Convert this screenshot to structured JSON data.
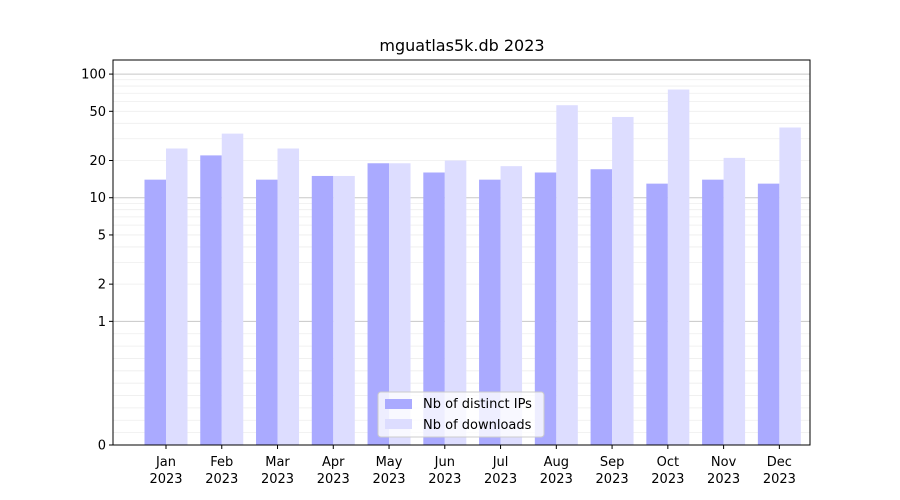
{
  "chart_data": {
    "type": "bar",
    "title": "mguatlas5k.db 2023",
    "xlabel": "",
    "ylabel": "",
    "categories": [
      [
        "Jan",
        "2023"
      ],
      [
        "Feb",
        "2023"
      ],
      [
        "Mar",
        "2023"
      ],
      [
        "Apr",
        "2023"
      ],
      [
        "May",
        "2023"
      ],
      [
        "Jun",
        "2023"
      ],
      [
        "Jul",
        "2023"
      ],
      [
        "Aug",
        "2023"
      ],
      [
        "Sep",
        "2023"
      ],
      [
        "Oct",
        "2023"
      ],
      [
        "Nov",
        "2023"
      ],
      [
        "Dec",
        "2023"
      ]
    ],
    "series": [
      {
        "name": "Nb of distinct IPs",
        "color": "#aaaaff",
        "values": [
          14,
          22,
          14,
          15,
          19,
          16,
          14,
          16,
          17,
          13,
          14,
          13
        ]
      },
      {
        "name": "Nb of downloads",
        "color": "#ddddff",
        "values": [
          25,
          33,
          25,
          15,
          19,
          20,
          18,
          56,
          45,
          75,
          21,
          37
        ]
      }
    ],
    "yscale": "symlog",
    "yticks": [
      0,
      1,
      2,
      5,
      10,
      20,
      50,
      100
    ],
    "ylim": [
      0,
      130
    ],
    "grid": true,
    "legend_position": "bottom-center"
  }
}
